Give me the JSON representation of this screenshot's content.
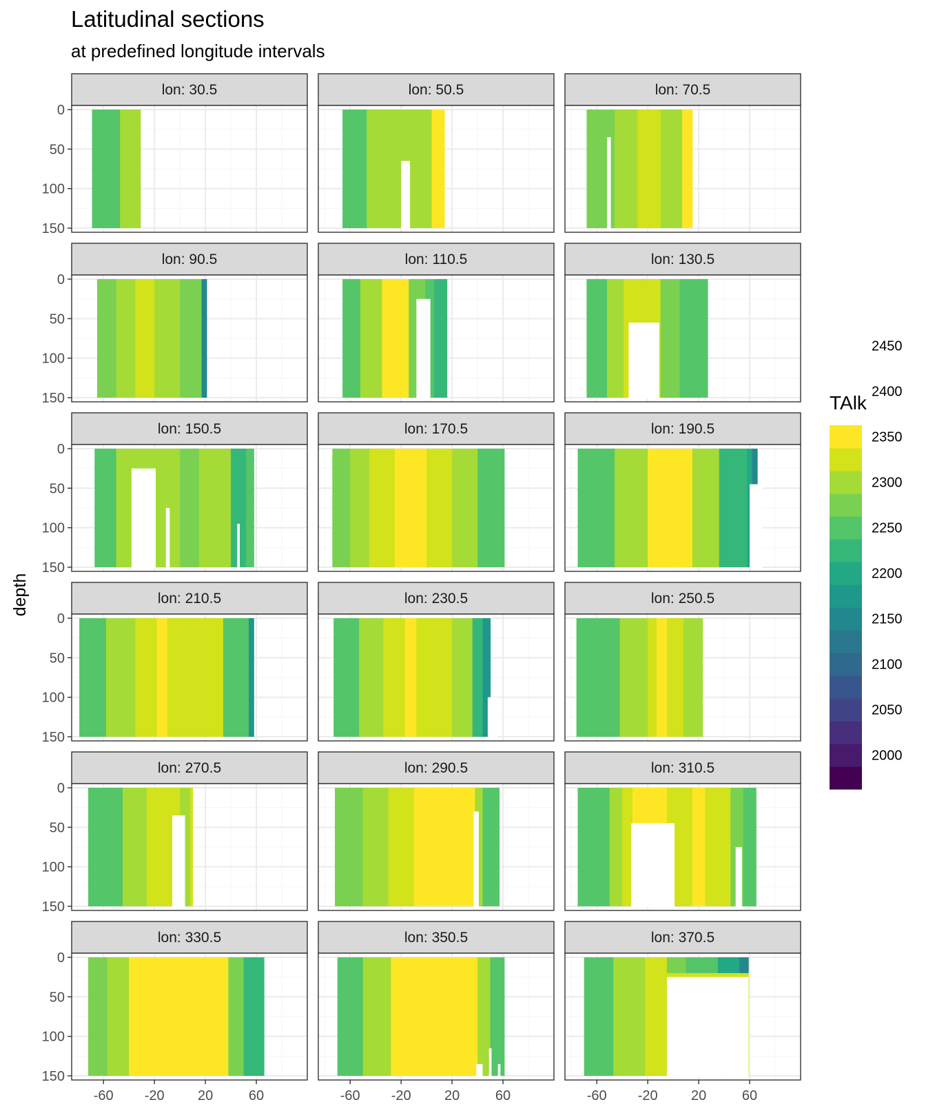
{
  "colors": {
    "levels": [
      "#440154",
      "#481a6c",
      "#472f7d",
      "#414487",
      "#39568c",
      "#31688e",
      "#2a788e",
      "#23888e",
      "#1f988b",
      "#22a884",
      "#35b779",
      "#54c568",
      "#7ad151",
      "#a5db36",
      "#d2e21b",
      "#fde725"
    ],
    "panel_border": "#333333",
    "strip_fill": "#d9d9d9",
    "grid_major": "#ebebeb",
    "grid_minor": "#f5f5f5"
  },
  "chart_data": {
    "type": "heatmap",
    "title": "Latitudinal sections",
    "subtitle": "at predefined longitude intervals",
    "xlabel": "",
    "ylabel": "depth",
    "xlim": [
      -85,
      100
    ],
    "ylim": [
      150,
      0
    ],
    "x_ticks": [
      -60,
      -20,
      20,
      60
    ],
    "x_tick_labels": [
      "-60",
      "-20",
      "20",
      "60"
    ],
    "y_ticks": [
      0,
      50,
      100,
      150
    ],
    "y_tick_labels": [
      "0",
      "50",
      "100",
      "150"
    ],
    "legend": {
      "title": "TAlk",
      "breaks": [
        2450,
        2400,
        2350,
        2300,
        2250,
        2200,
        2150,
        2100,
        2050,
        2000
      ],
      "break_labels": [
        "2450",
        "2400",
        "2350",
        "2300",
        "2250",
        "2200",
        "2150",
        "2100",
        "2050",
        "2000"
      ],
      "levels_min": 1975,
      "levels_step": 25
    },
    "facets": [
      {
        "label": "lon: 30.5",
        "lat_range": [
          -69,
          -31
        ],
        "bands": [
          [
            -69,
            2260
          ],
          [
            -47,
            2300
          ]
        ],
        "gaps": []
      },
      {
        "label": "lon: 50.5",
        "lat_range": [
          -66,
          14
        ],
        "bands": [
          [
            -66,
            2270
          ],
          [
            -47,
            2320
          ],
          [
            4,
            2360
          ]
        ],
        "gaps": [
          [
            -20,
            -13,
            65,
            150
          ]
        ]
      },
      {
        "label": "lon: 70.5",
        "lat_range": [
          -68,
          15
        ],
        "bands": [
          [
            -68,
            2280
          ],
          [
            -46,
            2310
          ],
          [
            -28,
            2340
          ],
          [
            -10,
            2320
          ],
          [
            -1,
            2300
          ],
          [
            7,
            2400
          ]
        ],
        "gaps": [
          [
            -52,
            -49,
            35,
            150
          ]
        ]
      },
      {
        "label": "lon: 90.5",
        "lat_range": [
          -65,
          21
        ],
        "bands": [
          [
            -65,
            2275
          ],
          [
            -50,
            2310
          ],
          [
            -35,
            2340
          ],
          [
            -20,
            2305
          ],
          [
            0,
            2285
          ],
          [
            17,
            2160
          ]
        ],
        "gaps": []
      },
      {
        "label": "lon: 110.5",
        "lat_range": [
          -66,
          16
        ],
        "bands": [
          [
            -66,
            2265
          ],
          [
            -52,
            2300
          ],
          [
            -35,
            2350
          ],
          [
            -14,
            2290
          ],
          [
            -1,
            2270
          ],
          [
            6,
            2240
          ]
        ],
        "gaps": [
          [
            -8,
            3,
            25,
            150
          ]
        ]
      },
      {
        "label": "lon: 130.5",
        "lat_range": [
          -68,
          27
        ],
        "bands": [
          [
            -68,
            2265
          ],
          [
            -52,
            2300
          ],
          [
            -39,
            2330
          ],
          [
            -23,
            2340
          ],
          [
            -10,
            2290
          ],
          [
            5,
            2270
          ],
          [
            15,
            2255
          ]
        ],
        "gaps": [
          [
            -35,
            -11,
            55,
            150
          ]
        ]
      },
      {
        "label": "lon: 150.5",
        "lat_range": [
          -67,
          58
        ],
        "bands": [
          [
            -67,
            2260
          ],
          [
            -50,
            2300
          ],
          [
            -25,
            2320
          ],
          [
            0,
            2285
          ],
          [
            15,
            2300
          ],
          [
            40,
            2240
          ],
          [
            52,
            2270
          ]
        ],
        "gaps": [
          [
            -38,
            -19,
            25,
            150
          ],
          [
            -11,
            -8,
            75,
            150
          ],
          [
            45,
            47,
            95,
            150
          ]
        ]
      },
      {
        "label": "lon: 170.5",
        "lat_range": [
          -74,
          61
        ],
        "bands": [
          [
            -74,
            2280
          ],
          [
            -60,
            2310
          ],
          [
            -45,
            2330
          ],
          [
            -25,
            2355
          ],
          [
            0,
            2340
          ],
          [
            20,
            2310
          ],
          [
            40,
            2250
          ]
        ],
        "gaps": []
      },
      {
        "label": "lon: 190.5",
        "lat_range": [
          -75,
          66
        ],
        "bands": [
          [
            -75,
            2260
          ],
          [
            -46,
            2310
          ],
          [
            -20,
            2360
          ],
          [
            15,
            2310
          ],
          [
            36,
            2230
          ],
          [
            58,
            2200
          ],
          [
            62,
            2160
          ]
        ],
        "gaps": [
          [
            60,
            70,
            45,
            150
          ]
        ]
      },
      {
        "label": "lon: 210.5",
        "lat_range": [
          -79,
          58
        ],
        "bands": [
          [
            -79,
            2270
          ],
          [
            -58,
            2310
          ],
          [
            -35,
            2340
          ],
          [
            -18,
            2380
          ],
          [
            -10,
            2335
          ],
          [
            20,
            2330
          ],
          [
            34,
            2250
          ],
          [
            54,
            2190
          ]
        ],
        "gaps": []
      },
      {
        "label": "lon: 230.5",
        "lat_range": [
          -73,
          50
        ],
        "bands": [
          [
            -73,
            2270
          ],
          [
            -53,
            2310
          ],
          [
            -34,
            2340
          ],
          [
            -17,
            2390
          ],
          [
            -8,
            2335
          ],
          [
            20,
            2300
          ],
          [
            36,
            2230
          ],
          [
            44,
            2190
          ]
        ],
        "gaps": [
          [
            48,
            56,
            100,
            150
          ]
        ]
      },
      {
        "label": "lon: 250.5",
        "lat_range": [
          -76,
          23
        ],
        "bands": [
          [
            -76,
            2270
          ],
          [
            -42,
            2310
          ],
          [
            -20,
            2340
          ],
          [
            -13,
            2380
          ],
          [
            -5,
            2330
          ],
          [
            8,
            2300
          ],
          [
            17,
            2320
          ]
        ],
        "gaps": []
      },
      {
        "label": "lon: 270.5",
        "lat_range": [
          -72,
          10
        ],
        "bands": [
          [
            -72,
            2270
          ],
          [
            -45,
            2310
          ],
          [
            -26,
            2345
          ],
          [
            0,
            2300
          ],
          [
            8,
            2340
          ]
        ],
        "gaps": [
          [
            -6,
            4,
            35,
            150
          ]
        ]
      },
      {
        "label": "lon: 290.5",
        "lat_range": [
          -72,
          57
        ],
        "bands": [
          [
            -72,
            2280
          ],
          [
            -50,
            2310
          ],
          [
            -30,
            2340
          ],
          [
            -10,
            2375
          ],
          [
            20,
            2380
          ],
          [
            38,
            2320
          ],
          [
            44,
            2270
          ]
        ],
        "gaps": [
          [
            37,
            41,
            30,
            150
          ]
        ]
      },
      {
        "label": "lon: 310.5",
        "lat_range": [
          -75,
          65
        ],
        "bands": [
          [
            -75,
            2270
          ],
          [
            -50,
            2310
          ],
          [
            -40,
            2335
          ],
          [
            -32,
            2380
          ],
          [
            -5,
            2340
          ],
          [
            15,
            2400
          ],
          [
            25,
            2330
          ],
          [
            45,
            2275
          ],
          [
            55,
            2260
          ]
        ],
        "gaps": [
          [
            -33,
            1,
            45,
            150
          ],
          [
            49,
            54,
            75,
            150
          ]
        ]
      },
      {
        "label": "lon: 330.5",
        "lat_range": [
          -72,
          66
        ],
        "bands": [
          [
            -72,
            2280
          ],
          [
            -57,
            2320
          ],
          [
            -40,
            2350
          ],
          [
            -26,
            2400
          ],
          [
            -12,
            2380
          ],
          [
            -3,
            2355
          ],
          [
            16,
            2400
          ],
          [
            21,
            2380
          ],
          [
            28,
            2350
          ],
          [
            38,
            2290
          ],
          [
            50,
            2240
          ]
        ],
        "gaps": []
      },
      {
        "label": "lon: 350.5",
        "lat_range": [
          -70,
          61
        ],
        "bands": [
          [
            -70,
            2265
          ],
          [
            -50,
            2310
          ],
          [
            -28,
            2390
          ],
          [
            -2,
            2360
          ],
          [
            40,
            2300
          ],
          [
            50,
            2270
          ]
        ],
        "gaps": [
          [
            39,
            44,
            135,
            150
          ],
          [
            49,
            51,
            115,
            150
          ],
          [
            56,
            58,
            135,
            150
          ]
        ]
      },
      {
        "label": "lon: 370.5",
        "lat_range": [
          -70,
          59
        ],
        "bands": [
          [
            -70,
            2270
          ],
          [
            -47,
            2310
          ],
          [
            -22,
            2340
          ],
          [
            -8,
            2335
          ]
        ],
        "gaps": [
          [
            -5,
            59,
            25,
            150
          ]
        ],
        "cap": {
          "from": -5,
          "to": 59,
          "depth": 20,
          "levels": [
            [
              -5,
              2290
            ],
            [
              10,
              2255
            ],
            [
              35,
              2200
            ],
            [
              52,
              2170
            ]
          ]
        }
      }
    ]
  }
}
